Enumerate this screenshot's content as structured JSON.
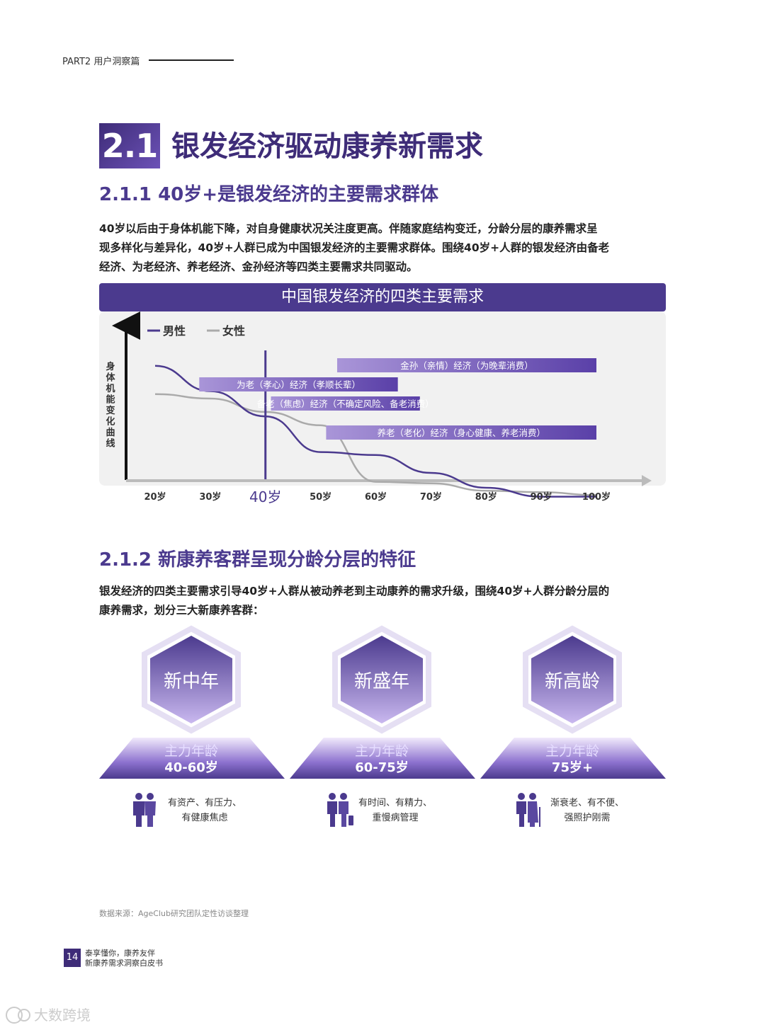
{
  "header": {
    "part": "PART2 用户洞察篇"
  },
  "section": {
    "number": "2.1",
    "title": "银发经济驱动康养新需求"
  },
  "sub1": {
    "title": "2.1.1 40岁+是银发经济的主要需求群体",
    "paragraph_lines": [
      "40岁以后由于身体机能下降，对自身健康状况关注度更高。伴随家庭结构变迁，分龄分层的康养需求呈",
      "现多样化与差异化，40岁+人群已成为中国银发经济的主要需求群体。围绕40岁+人群的银发经济由备老",
      "经济、为老经济、养老经济、金孙经济等四类主要需求共同驱动。"
    ]
  },
  "chart_data": {
    "type": "line",
    "title": "中国银发经济的四类主要需求",
    "ylabel": "身体机能变化曲线",
    "x": [
      20,
      30,
      40,
      50,
      60,
      70,
      80,
      90,
      100
    ],
    "tick_labels": [
      "20岁",
      "30岁",
      "40岁",
      "50岁",
      "60岁",
      "70岁",
      "80岁",
      "90岁",
      "100岁"
    ],
    "highlight_tick": "40岁",
    "series": [
      {
        "name": "男性",
        "color": "#4b3a8e",
        "values": [
          92,
          75,
          58,
          34,
          32,
          20,
          10,
          4,
          4
        ]
      },
      {
        "name": "女性",
        "color": "#aaaaaa",
        "values": [
          73,
          70,
          61,
          52,
          14,
          13,
          8,
          7,
          5
        ]
      }
    ],
    "legend": {
      "male": "男性",
      "female": "女性",
      "placement": "top-left"
    },
    "bands": [
      {
        "label": "金孙（亲情）经济（为晚辈消费）",
        "start": 53,
        "end": 100
      },
      {
        "label": "为老（孝心）经济（孝顺长辈）",
        "start": 28,
        "end": 64
      },
      {
        "label": "备老（焦虑）经济（不确定风险、备老消费）",
        "start": 41,
        "end": 68
      },
      {
        "label": "养老（老化）经济（身心健康、养老消费）",
        "start": 51,
        "end": 100
      }
    ]
  },
  "sub2": {
    "title": "2.1.2 新康养客群呈现分龄分层的特征",
    "paragraph_lines": [
      "银发经济的四类主要需求引导40岁+人群从被动养老到主动康养的需求升级，围绕40岁+人群分龄分层的",
      "康养需求，划分三大新康养客群："
    ]
  },
  "groups": [
    {
      "name": "新中年",
      "age_title": "主力年龄",
      "age_range": "40-60岁",
      "feature_line1": "有资产、有压力、",
      "feature_line2": "有健康焦虑",
      "icon": "couple-icon"
    },
    {
      "name": "新盛年",
      "age_title": "主力年龄",
      "age_range": "60-75岁",
      "feature_line1": "有时间、有精力、",
      "feature_line2": "重慢病管理",
      "icon": "travelers-icon"
    },
    {
      "name": "新高龄",
      "age_title": "主力年龄",
      "age_range": "75岁+",
      "feature_line1": "渐衰老、有不便、",
      "feature_line2": "强照护刚需",
      "icon": "elderly-cane-icon"
    }
  ],
  "source": "数据来源：AgeClub研究团队定性访谈整理",
  "footer": {
    "page": "14",
    "line1": "泰享懂你，康养友伴",
    "line2": "新康养需求洞察白皮书"
  },
  "watermark": {
    "text": "大数跨境"
  }
}
